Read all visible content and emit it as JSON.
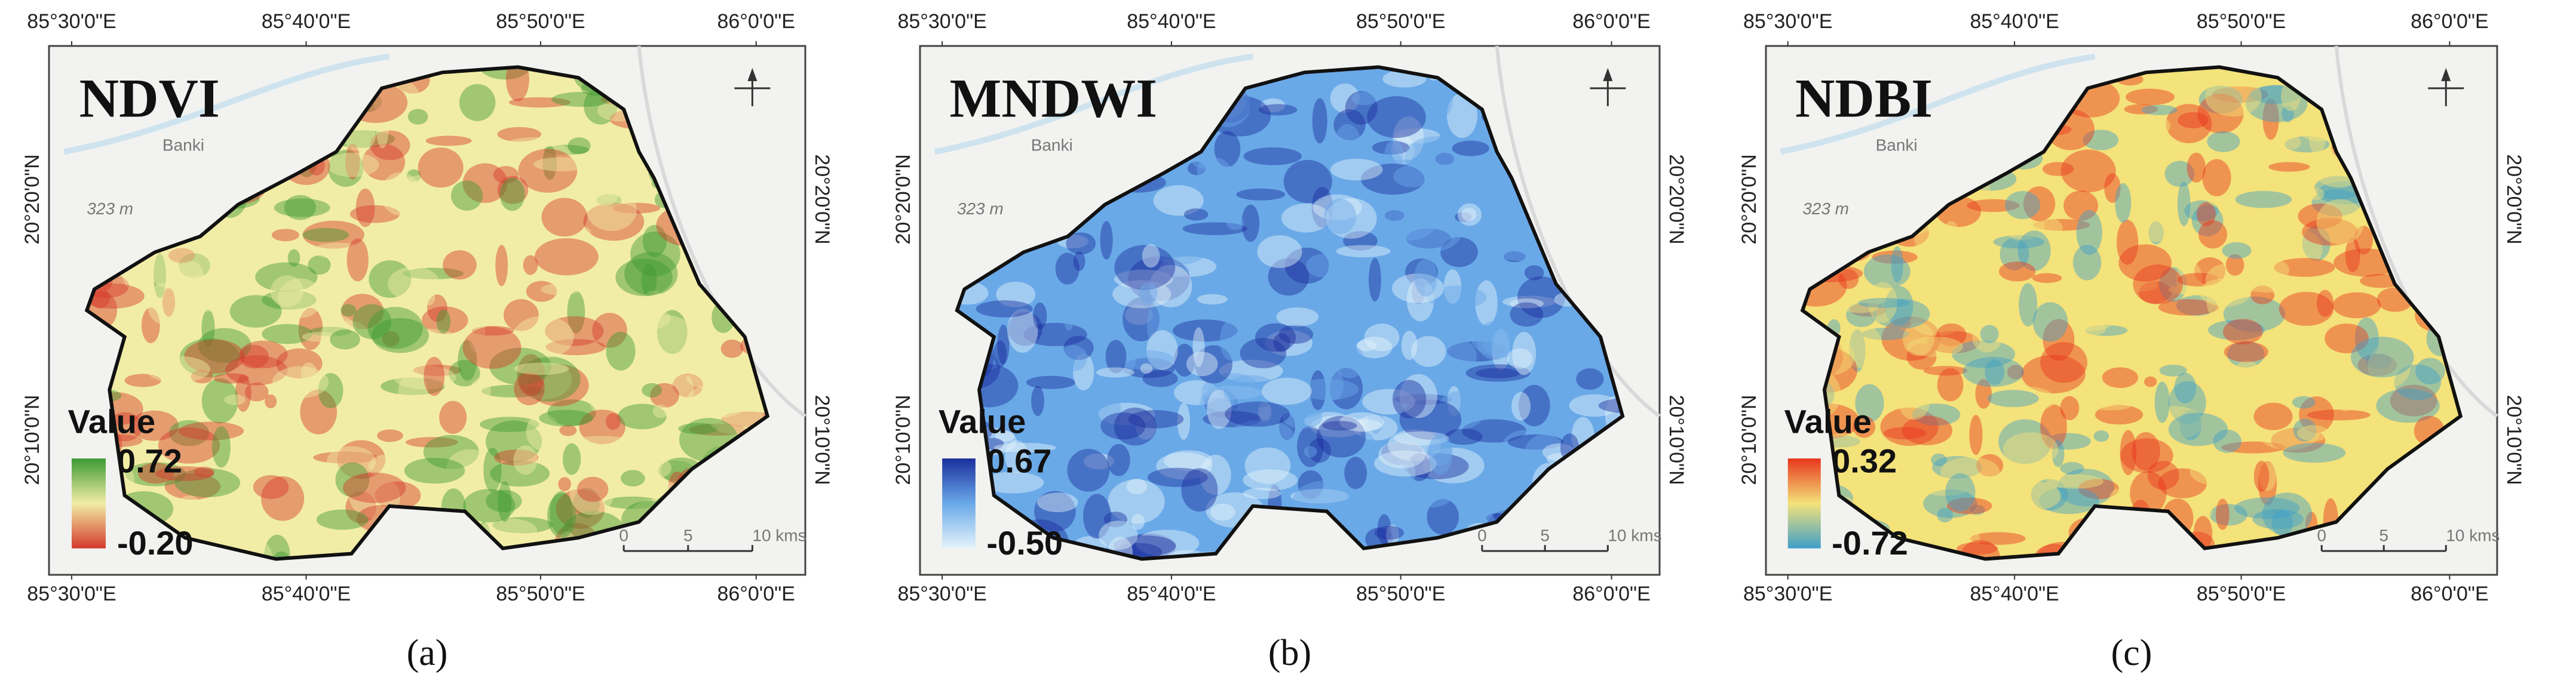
{
  "axes": {
    "lon": [
      "85°30'0\"E",
      "85°40'0\"E",
      "85°50'0\"E",
      "86°0'0\"E"
    ],
    "lat": [
      "20°20'0\"N",
      "20°10'0\"N"
    ]
  },
  "map_labels": {
    "place": "Banki",
    "elevation": "323 m",
    "scale": [
      "0",
      "5",
      "10 kms"
    ]
  },
  "panels": [
    {
      "title": "NDVI",
      "legend": {
        "label": "Value",
        "max": "0.72",
        "min": "-0.20"
      },
      "ramp": [
        "#3d9a34",
        "#f2eda6",
        "#d43a2c"
      ],
      "caption": "(a)"
    },
    {
      "title": "MNDWI",
      "legend": {
        "label": "Value",
        "max": "0.67",
        "min": "-0.50"
      },
      "ramp": [
        "#1a2f9e",
        "#6aa9e8",
        "#e4f3fb"
      ],
      "caption": "(b)"
    },
    {
      "title": "NDBI",
      "legend": {
        "label": "Value",
        "max": "0.32",
        "min": "-0.72"
      },
      "ramp": [
        "#e8361c",
        "#f4e27a",
        "#3f9fc8"
      ],
      "caption": "(c)"
    }
  ]
}
